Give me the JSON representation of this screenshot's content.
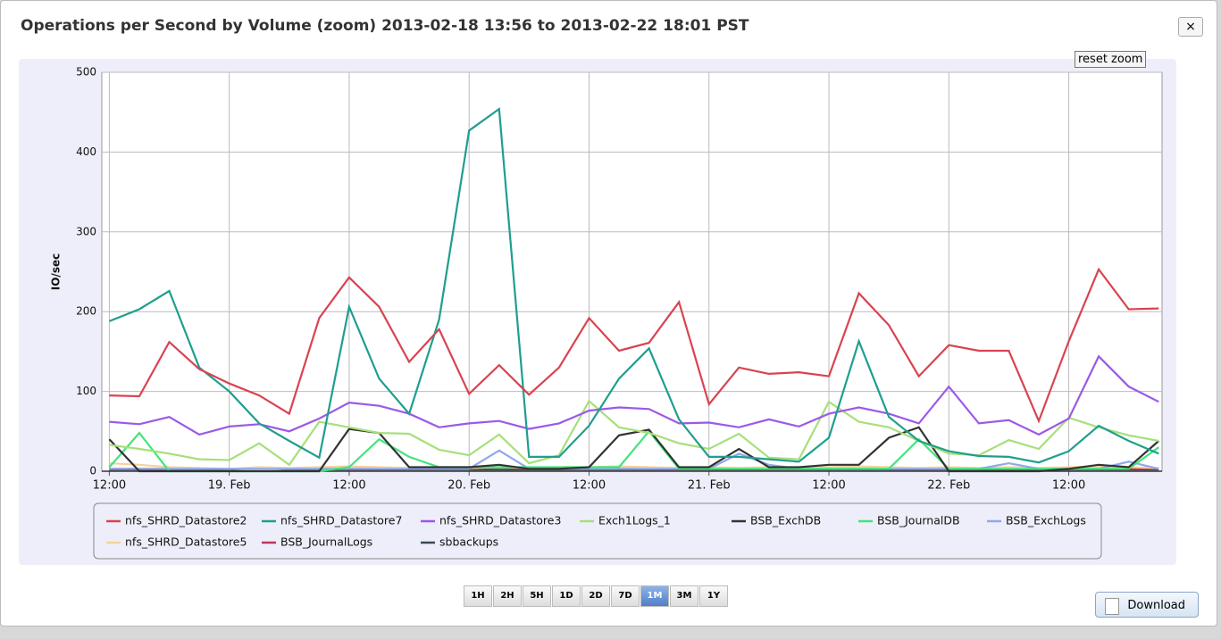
{
  "chart_data": {
    "type": "line",
    "title": "Operations per Second by Volume (zoom) 2013-02-18 13:56 to 2013-02-22 18:01 PST",
    "y_label": "IO/sec",
    "x": [
      "2013-02-18 12:00",
      "2013-02-18 15:00",
      "2013-02-18 18:00",
      "2013-02-18 21:00",
      "2013-02-19 00:00",
      "2013-02-19 03:00",
      "2013-02-19 06:00",
      "2013-02-19 09:00",
      "2013-02-19 12:00",
      "2013-02-19 15:00",
      "2013-02-19 18:00",
      "2013-02-19 21:00",
      "2013-02-20 00:00",
      "2013-02-20 03:00",
      "2013-02-20 06:00",
      "2013-02-20 09:00",
      "2013-02-20 12:00",
      "2013-02-20 15:00",
      "2013-02-20 18:00",
      "2013-02-20 21:00",
      "2013-02-21 00:00",
      "2013-02-21 03:00",
      "2013-02-21 06:00",
      "2013-02-21 09:00",
      "2013-02-21 12:00",
      "2013-02-21 15:00",
      "2013-02-21 18:00",
      "2013-02-21 21:00",
      "2013-02-22 00:00",
      "2013-02-22 03:00",
      "2013-02-22 06:00",
      "2013-02-22 09:00",
      "2013-02-22 12:00",
      "2013-02-22 15:00",
      "2013-02-22 18:00",
      "2013-02-22 21:00"
    ],
    "xlim": [
      "2013-02-18 11:15",
      "2013-02-22 21:20"
    ],
    "xticks": [
      {
        "value": "2013-02-18 12:00",
        "label": "12:00"
      },
      {
        "value": "2013-02-19 00:00",
        "label": "19. Feb"
      },
      {
        "value": "2013-02-19 12:00",
        "label": "12:00"
      },
      {
        "value": "2013-02-20 00:00",
        "label": "20. Feb"
      },
      {
        "value": "2013-02-20 12:00",
        "label": "12:00"
      },
      {
        "value": "2013-02-21 00:00",
        "label": "21. Feb"
      },
      {
        "value": "2013-02-21 12:00",
        "label": "12:00"
      },
      {
        "value": "2013-02-22 00:00",
        "label": "22. Feb"
      },
      {
        "value": "2013-02-22 12:00",
        "label": "12:00"
      }
    ],
    "ylim": [
      0,
      500
    ],
    "yticks": [
      0,
      100,
      200,
      300,
      400,
      500
    ],
    "grid": true,
    "series": [
      {
        "name": "nfs_SHRD_Datastore2",
        "color": "#d9434f",
        "values": [
          95,
          94,
          162,
          128,
          110,
          95,
          72,
          192,
          243,
          206,
          137,
          178,
          97,
          133,
          96,
          130,
          192,
          151,
          161,
          212,
          84,
          130,
          122,
          124,
          119,
          223,
          183,
          119,
          158,
          151,
          151,
          63,
          163,
          253,
          203,
          204
        ]
      },
      {
        "name": "nfs_SHRD_Datastore7",
        "color": "#1f9e8f",
        "values": [
          188,
          203,
          226,
          130,
          100,
          60,
          38,
          17,
          206,
          116,
          72,
          190,
          427,
          454,
          18,
          18,
          57,
          116,
          154,
          65,
          18,
          18,
          15,
          12,
          42,
          163,
          68,
          38,
          25,
          19,
          18,
          11,
          25,
          57,
          38,
          22
        ]
      },
      {
        "name": "nfs_SHRD_Datastore3",
        "color": "#9b59e6",
        "values": [
          62,
          59,
          68,
          46,
          56,
          59,
          50,
          66,
          86,
          82,
          72,
          55,
          60,
          63,
          53,
          60,
          76,
          80,
          78,
          60,
          61,
          55,
          65,
          56,
          72,
          80,
          72,
          60,
          106,
          60,
          64,
          46,
          66,
          144,
          106,
          87
        ]
      },
      {
        "name": "Exch1Logs_1",
        "color": "#a6e07a",
        "values": [
          33,
          28,
          22,
          15,
          14,
          35,
          8,
          62,
          55,
          48,
          47,
          27,
          20,
          46,
          10,
          20,
          88,
          55,
          48,
          35,
          28,
          47,
          17,
          15,
          87,
          62,
          55,
          38,
          22,
          20,
          39,
          28,
          67,
          55,
          45,
          38
        ]
      },
      {
        "name": "BSB_ExchDB",
        "color": "#333333",
        "values": [
          40,
          0,
          0,
          0,
          0,
          0,
          0,
          0,
          53,
          48,
          5,
          5,
          5,
          8,
          3,
          3,
          5,
          45,
          52,
          5,
          5,
          28,
          5,
          5,
          8,
          8,
          42,
          55,
          0,
          0,
          0,
          0,
          3,
          8,
          5,
          38
        ]
      },
      {
        "name": "BSB_JournalDB",
        "color": "#3fe67a",
        "values": [
          5,
          48,
          0,
          0,
          0,
          0,
          0,
          0,
          5,
          40,
          18,
          5,
          5,
          5,
          5,
          5,
          5,
          5,
          50,
          3,
          3,
          3,
          3,
          3,
          3,
          3,
          3,
          40,
          3,
          3,
          3,
          3,
          3,
          3,
          3,
          30
        ]
      },
      {
        "name": "BSB_ExchLogs",
        "color": "#8fa8ee",
        "values": [
          3,
          3,
          3,
          3,
          3,
          3,
          3,
          3,
          3,
          3,
          3,
          3,
          3,
          26,
          3,
          3,
          3,
          3,
          3,
          3,
          3,
          22,
          8,
          3,
          3,
          3,
          3,
          3,
          3,
          3,
          10,
          3,
          3,
          3,
          12,
          3
        ]
      },
      {
        "name": "nfs_SHRD_Datastore5",
        "color": "#f5d29a",
        "values": [
          10,
          8,
          5,
          4,
          3,
          5,
          4,
          5,
          6,
          5,
          4,
          5,
          4,
          5,
          4,
          5,
          5,
          6,
          5,
          4,
          5,
          4,
          5,
          4,
          5,
          6,
          5,
          4,
          5,
          4,
          5,
          4,
          5,
          6,
          5,
          4
        ]
      },
      {
        "name": "BSB_JournalLogs",
        "color": "#c0335a",
        "values": [
          3,
          3,
          3,
          3,
          3,
          3,
          3,
          3,
          3,
          3,
          3,
          3,
          3,
          5,
          3,
          3,
          3,
          3,
          3,
          3,
          3,
          3,
          3,
          3,
          3,
          3,
          3,
          3,
          3,
          3,
          3,
          3,
          3,
          3,
          3,
          3
        ]
      },
      {
        "name": "sbbackups",
        "color": "#3a4a52",
        "values": [
          2,
          2,
          2,
          2,
          2,
          4,
          2,
          2,
          2,
          2,
          2,
          2,
          2,
          2,
          2,
          2,
          2,
          2,
          2,
          2,
          2,
          2,
          2,
          2,
          2,
          2,
          2,
          2,
          2,
          2,
          2,
          2,
          2,
          2,
          2,
          2
        ]
      }
    ]
  },
  "controls": {
    "close": "×",
    "reset_zoom": "reset zoom",
    "ranges": [
      "1H",
      "2H",
      "5H",
      "1D",
      "2D",
      "7D",
      "1M",
      "3M",
      "1Y"
    ],
    "selected_range": 6,
    "download": "Download"
  }
}
